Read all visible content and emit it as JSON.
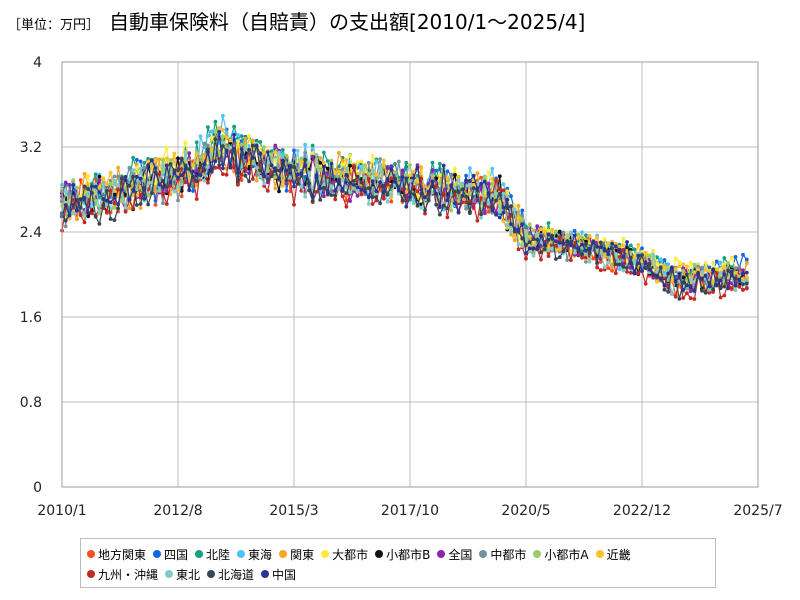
{
  "header": {
    "unit": "［単位：万円］",
    "title": "自動車保険料（自賠責）の支出額[2010/1～2025/4]"
  },
  "chart_data": {
    "type": "line",
    "title": "自動車保険料（自賠責）の支出額[2010/1～2025/4]",
    "unit_label": "［単位：万円］",
    "xlabel": "",
    "ylabel": "",
    "ylim": [
      0,
      4
    ],
    "y_ticks": [
      "0",
      "0.8",
      "1.6",
      "2.4",
      "3.2",
      "4"
    ],
    "y_tick_values": [
      0,
      0.8,
      1.6,
      2.4,
      3.2,
      4
    ],
    "x_range": [
      "2010/1",
      "2025/7"
    ],
    "x_ticks": [
      "2010/1",
      "2012/8",
      "2015/3",
      "2017/10",
      "2020/5",
      "2022/12",
      "2025/7"
    ],
    "grid": true,
    "legend_position": "bottom",
    "series_anchor_dates": [
      "2010/1",
      "2011/1",
      "2012/1",
      "2013/1",
      "2013/7",
      "2014/1",
      "2015/1",
      "2016/1",
      "2017/1",
      "2018/1",
      "2019/1",
      "2019/10",
      "2020/5",
      "2021/1",
      "2022/1",
      "2023/1",
      "2023/6",
      "2024/1",
      "2025/4"
    ],
    "series": [
      {
        "name": "地方関東",
        "color": "#f4511e",
        "values": [
          2.65,
          2.75,
          2.85,
          2.95,
          3.2,
          3.1,
          2.95,
          2.9,
          2.85,
          2.8,
          2.75,
          2.72,
          2.3,
          2.3,
          2.2,
          2.1,
          1.95,
          1.92,
          1.95
        ]
      },
      {
        "name": "四国",
        "color": "#1565e8",
        "values": [
          2.7,
          2.8,
          2.9,
          3.0,
          3.25,
          3.15,
          3.0,
          2.95,
          2.9,
          2.85,
          2.8,
          2.75,
          2.4,
          2.35,
          2.25,
          2.15,
          2.0,
          1.95,
          2.1
        ]
      },
      {
        "name": "北陸",
        "color": "#13a07e",
        "values": [
          2.75,
          2.82,
          2.92,
          3.05,
          3.3,
          3.2,
          3.05,
          3.0,
          2.92,
          2.88,
          2.82,
          2.78,
          2.38,
          2.35,
          2.25,
          2.18,
          2.02,
          1.98,
          2.05
        ]
      },
      {
        "name": "東海",
        "color": "#4fc3f7",
        "values": [
          2.72,
          2.8,
          2.9,
          3.02,
          3.35,
          3.22,
          3.02,
          2.98,
          2.9,
          2.85,
          2.8,
          2.76,
          2.35,
          2.32,
          2.22,
          2.15,
          2.0,
          1.96,
          2.02
        ]
      },
      {
        "name": "関東",
        "color": "#f5a623",
        "values": [
          2.68,
          2.76,
          2.86,
          2.98,
          3.22,
          3.12,
          2.98,
          2.92,
          2.88,
          2.82,
          2.78,
          2.74,
          2.32,
          2.3,
          2.22,
          2.12,
          1.98,
          1.95,
          2.0
        ]
      },
      {
        "name": "大都市",
        "color": "#ffeb3b",
        "values": [
          2.7,
          2.82,
          2.95,
          3.05,
          3.25,
          3.15,
          3.0,
          2.95,
          2.9,
          2.85,
          2.82,
          2.78,
          2.35,
          2.35,
          2.28,
          2.18,
          2.05,
          2.02,
          2.05
        ]
      },
      {
        "name": "小都市B",
        "color": "#111111",
        "values": [
          2.6,
          2.72,
          2.85,
          2.95,
          3.15,
          3.08,
          2.95,
          2.9,
          2.85,
          2.8,
          2.75,
          2.7,
          2.3,
          2.28,
          2.2,
          2.1,
          1.97,
          1.94,
          1.98
        ]
      },
      {
        "name": "全国",
        "color": "#8e24aa",
        "values": [
          2.66,
          2.77,
          2.88,
          2.98,
          3.2,
          3.12,
          2.98,
          2.93,
          2.88,
          2.83,
          2.78,
          2.74,
          2.33,
          2.31,
          2.22,
          2.13,
          1.99,
          1.95,
          1.99
        ]
      },
      {
        "name": "中都市",
        "color": "#78909c",
        "values": [
          2.64,
          2.75,
          2.86,
          2.97,
          3.18,
          3.1,
          2.97,
          2.92,
          2.87,
          2.82,
          2.77,
          2.73,
          2.32,
          2.3,
          2.21,
          2.12,
          1.98,
          1.94,
          1.98
        ]
      },
      {
        "name": "小都市A",
        "color": "#9ccc65",
        "values": [
          2.67,
          2.78,
          2.9,
          3.0,
          3.22,
          3.14,
          3.0,
          2.95,
          2.9,
          2.85,
          2.8,
          2.76,
          2.36,
          2.34,
          2.25,
          2.16,
          2.02,
          1.98,
          2.02
        ]
      },
      {
        "name": "近畿",
        "color": "#fbc02d",
        "values": [
          2.69,
          2.79,
          2.9,
          3.0,
          3.24,
          3.14,
          2.99,
          2.94,
          2.89,
          2.84,
          2.79,
          2.75,
          2.34,
          2.33,
          2.24,
          2.15,
          2.01,
          1.97,
          2.03
        ]
      },
      {
        "name": "九州・沖縄",
        "color": "#c62828",
        "values": [
          2.55,
          2.68,
          2.8,
          2.9,
          3.1,
          3.02,
          2.9,
          2.85,
          2.8,
          2.75,
          2.7,
          2.66,
          2.22,
          2.25,
          2.15,
          2.05,
          1.92,
          1.88,
          1.9
        ]
      },
      {
        "name": "東北",
        "color": "#80cbc4",
        "values": [
          2.62,
          2.74,
          2.86,
          2.96,
          3.2,
          3.1,
          2.96,
          2.9,
          2.86,
          2.8,
          2.76,
          2.72,
          2.3,
          2.28,
          2.2,
          2.1,
          1.95,
          1.9,
          1.95
        ]
      },
      {
        "name": "北海道",
        "color": "#37474f",
        "values": [
          2.58,
          2.7,
          2.82,
          2.92,
          3.12,
          3.05,
          2.92,
          2.88,
          2.82,
          2.78,
          2.72,
          2.68,
          2.28,
          2.27,
          2.18,
          2.08,
          1.92,
          1.88,
          1.9
        ]
      },
      {
        "name": "中国",
        "color": "#283593",
        "values": [
          2.64,
          2.76,
          2.87,
          2.98,
          3.19,
          3.11,
          2.97,
          2.92,
          2.87,
          2.82,
          2.77,
          2.73,
          2.32,
          2.31,
          2.22,
          2.12,
          1.97,
          1.94,
          1.98
        ]
      }
    ]
  }
}
